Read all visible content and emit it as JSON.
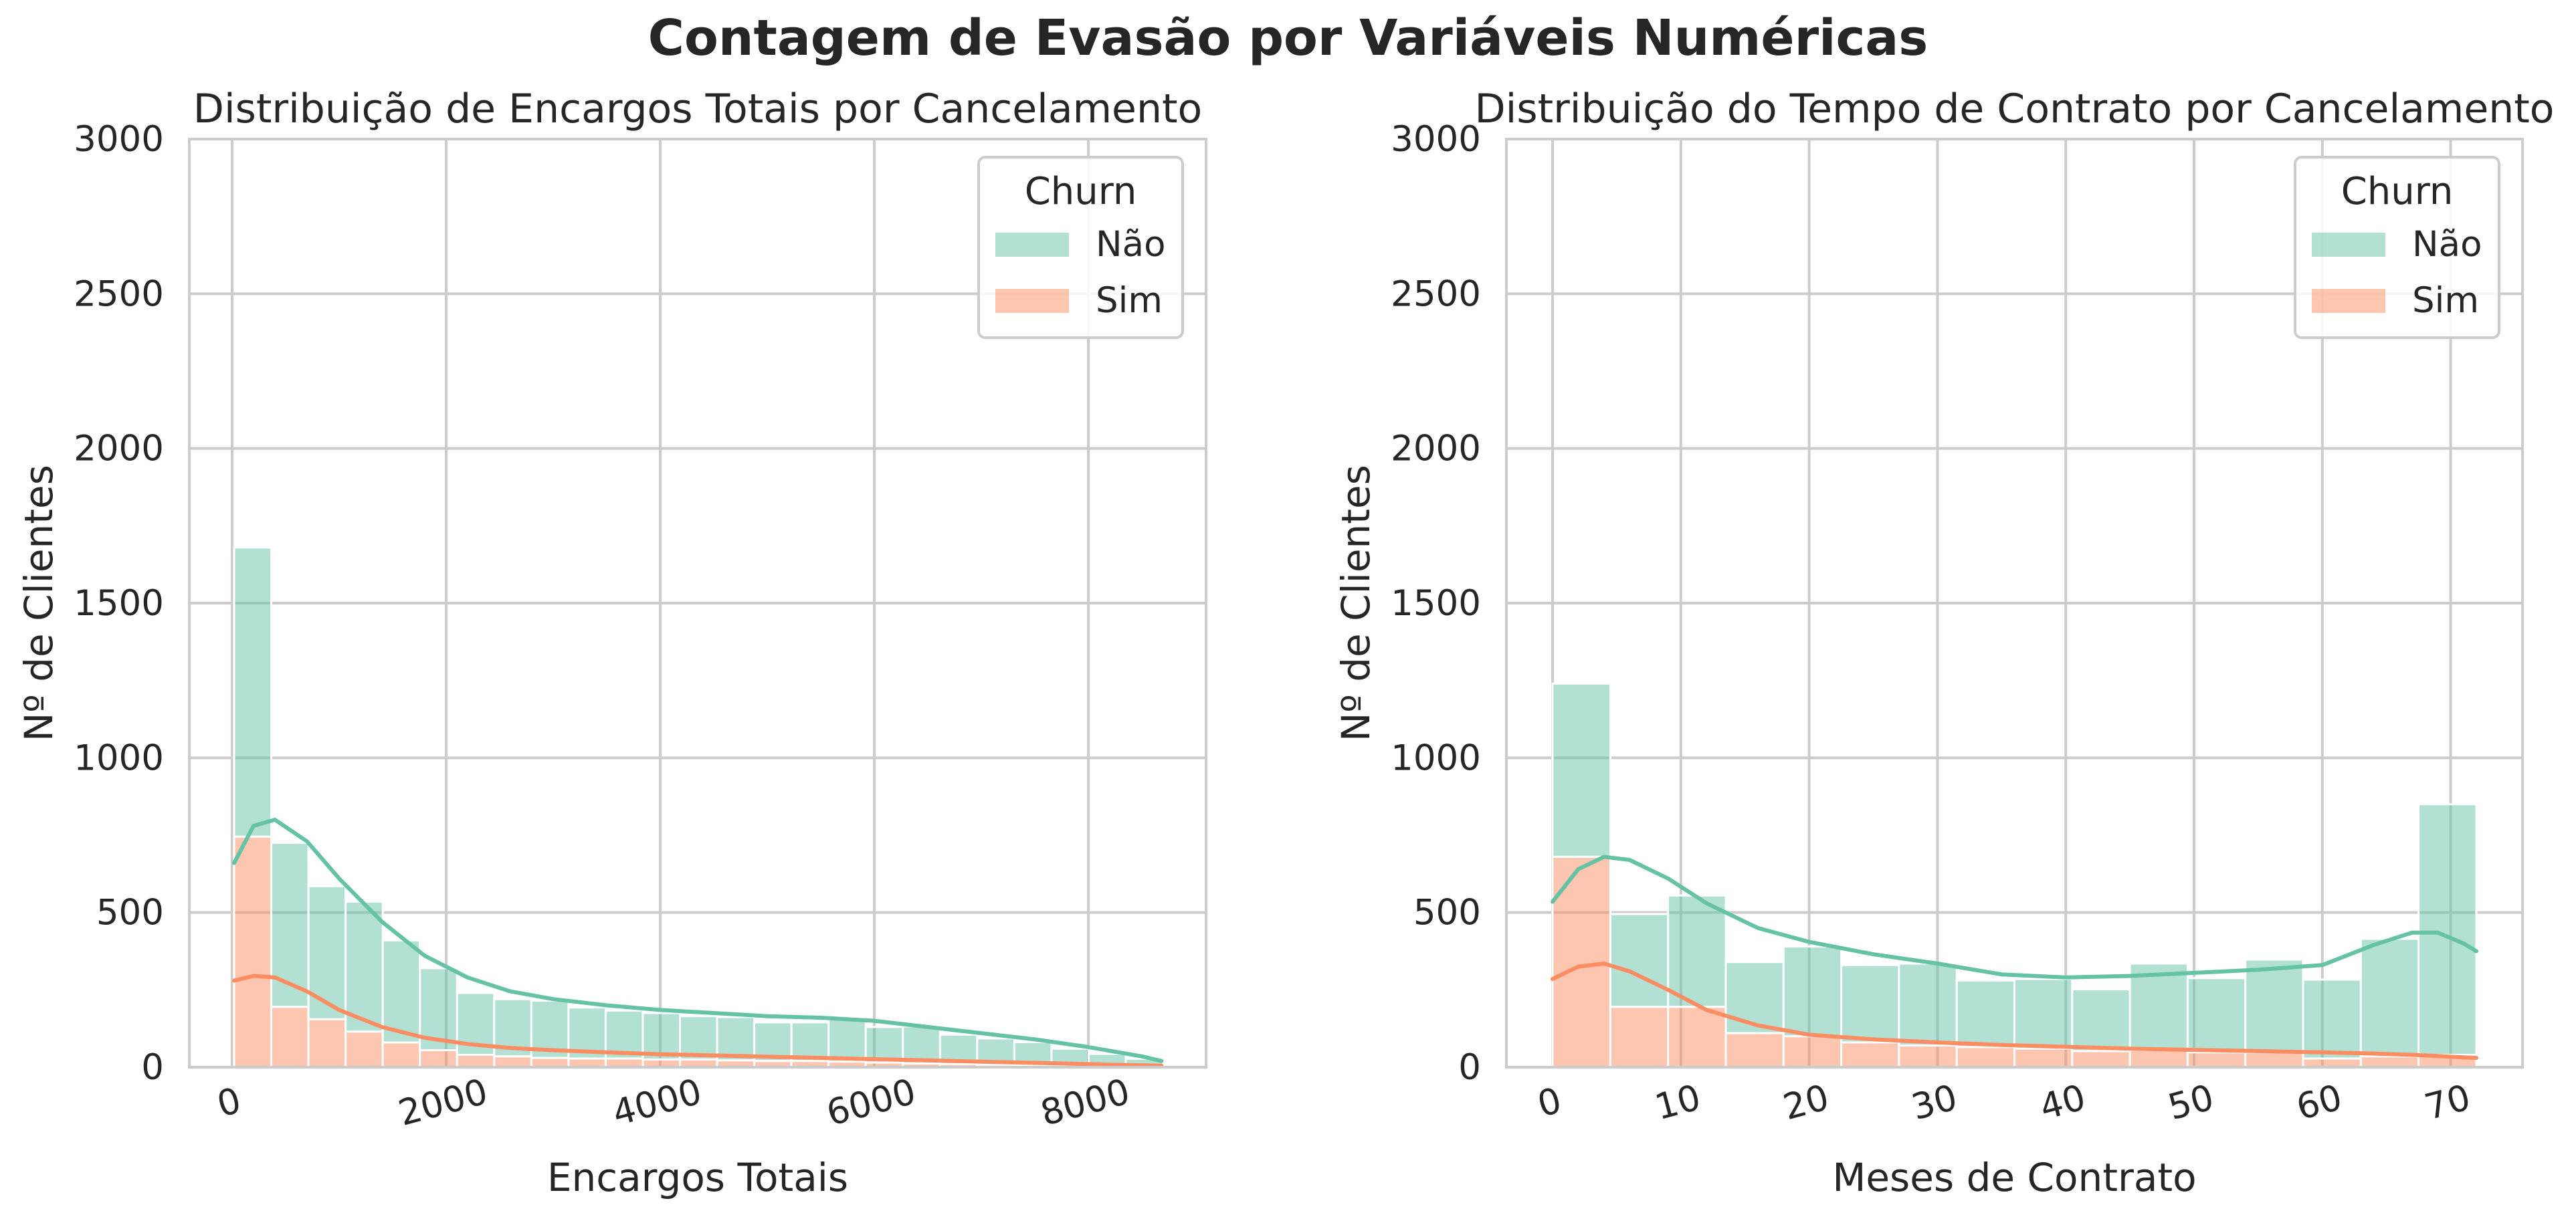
{
  "suptitle": "Contagem de Evasão por Variáveis Numéricas",
  "colors": {
    "nao": "#66c2a5",
    "sim": "#fc8d62",
    "grid": "#cccccc",
    "text": "#262626"
  },
  "chart_data": [
    {
      "type": "histogram",
      "title": "Distribuição de Encargos Totais por Cancelamento",
      "xlabel": "Encargos Totais",
      "ylabel": "Nº de Clientes",
      "xlim": [
        -400,
        9100
      ],
      "ylim": [
        0,
        3000
      ],
      "xticks": [
        0,
        2000,
        4000,
        6000,
        8000
      ],
      "xtick_labels": [
        "0",
        "2000",
        "4000",
        "6000",
        "8000"
      ],
      "yticks": [
        0,
        500,
        1000,
        1500,
        2000,
        2500,
        3000
      ],
      "ytick_labels": [
        "0",
        "500",
        "1000",
        "1500",
        "2000",
        "2500",
        "3000"
      ],
      "grid": true,
      "stacked": true,
      "legend": {
        "title": "Churn",
        "position": "top-right",
        "entries": [
          "Não",
          "Sim"
        ]
      },
      "bins": [
        18.8,
        365.9,
        713.1,
        1060.2,
        1407.4,
        1754.5,
        2101.7,
        2448.8,
        2795.9,
        3143.1,
        3490.2,
        3837.4,
        4184.5,
        4531.7,
        4878.8,
        5225.9,
        5573.1,
        5920.2,
        6267.4,
        6614.5,
        6961.7,
        7308.8,
        7655.9,
        8003.1,
        8350.2,
        8697.4
      ],
      "series": [
        {
          "name": "Não",
          "values": [
            935,
            530,
            430,
            420,
            330,
            265,
            200,
            185,
            185,
            165,
            155,
            150,
            140,
            140,
            125,
            125,
            140,
            115,
            120,
            95,
            85,
            75,
            55,
            40,
            25
          ]
        },
        {
          "name": "Sim",
          "values": [
            745,
            195,
            155,
            115,
            80,
            55,
            40,
            35,
            30,
            28,
            28,
            25,
            25,
            22,
            20,
            20,
            18,
            15,
            12,
            10,
            8,
            6,
            5,
            3,
            2
          ]
        }
      ],
      "kde": [
        {
          "name": "Não",
          "x": [
            19,
            200,
            400,
            700,
            1000,
            1400,
            1800,
            2200,
            2600,
            3000,
            3500,
            4000,
            4500,
            5000,
            5500,
            6000,
            6500,
            7000,
            7500,
            8000,
            8500,
            8684
          ],
          "y": [
            660,
            780,
            800,
            730,
            610,
            470,
            360,
            290,
            245,
            220,
            200,
            185,
            175,
            165,
            160,
            150,
            130,
            110,
            90,
            65,
            35,
            20
          ]
        },
        {
          "name": "Sim",
          "x": [
            19,
            200,
            400,
            700,
            1000,
            1400,
            1800,
            2200,
            2600,
            3000,
            3500,
            4000,
            4500,
            5000,
            5500,
            6000,
            6500,
            7000,
            7500,
            8000,
            8500,
            8684
          ],
          "y": [
            280,
            295,
            290,
            245,
            185,
            130,
            95,
            75,
            62,
            55,
            48,
            42,
            38,
            34,
            30,
            26,
            22,
            18,
            14,
            10,
            6,
            5
          ]
        }
      ]
    },
    {
      "type": "histogram",
      "title": "Distribuição do Tempo de Contrato por Cancelamento",
      "xlabel": "Meses de Contrato",
      "ylabel": "Nº de Clientes",
      "xlim": [
        -3.6,
        75.6
      ],
      "ylim": [
        0,
        3000
      ],
      "xticks": [
        0,
        10,
        20,
        30,
        40,
        50,
        60,
        70
      ],
      "xtick_labels": [
        "0",
        "10",
        "20",
        "30",
        "40",
        "50",
        "60",
        "70"
      ],
      "yticks": [
        0,
        500,
        1000,
        1500,
        2000,
        2500,
        3000
      ],
      "ytick_labels": [
        "0",
        "500",
        "1000",
        "1500",
        "2000",
        "2500",
        "3000"
      ],
      "grid": true,
      "stacked": true,
      "legend": {
        "title": "Churn",
        "position": "top-right",
        "entries": [
          "Não",
          "Sim"
        ]
      },
      "bins": [
        0,
        4.5,
        9,
        13.5,
        18,
        22.5,
        27,
        31.5,
        36,
        40.5,
        45,
        49.5,
        54,
        58.5,
        63,
        67.5,
        72
      ],
      "series": [
        {
          "name": "Não",
          "values": [
            560,
            300,
            360,
            230,
            290,
            250,
            265,
            215,
            225,
            200,
            280,
            240,
            300,
            255,
            380,
            810
          ]
        },
        {
          "name": "Sim",
          "values": [
            680,
            195,
            195,
            110,
            100,
            80,
            70,
            65,
            60,
            52,
            55,
            48,
            48,
            28,
            35,
            40
          ]
        }
      ],
      "kde": [
        {
          "name": "Não",
          "x": [
            0,
            2,
            4,
            6,
            9,
            12,
            16,
            20,
            25,
            30,
            35,
            40,
            45,
            50,
            55,
            60,
            64,
            67,
            69,
            71,
            72
          ],
          "y": [
            535,
            640,
            680,
            670,
            610,
            530,
            450,
            405,
            365,
            335,
            300,
            290,
            295,
            305,
            315,
            330,
            395,
            435,
            435,
            400,
            375
          ]
        },
        {
          "name": "Sim",
          "x": [
            0,
            2,
            4,
            6,
            9,
            12,
            16,
            20,
            25,
            30,
            35,
            40,
            45,
            50,
            55,
            60,
            64,
            67,
            69,
            71,
            72
          ],
          "y": [
            285,
            325,
            335,
            310,
            250,
            185,
            135,
            105,
            90,
            80,
            72,
            66,
            60,
            56,
            52,
            48,
            44,
            40,
            36,
            32,
            30
          ]
        }
      ]
    }
  ]
}
